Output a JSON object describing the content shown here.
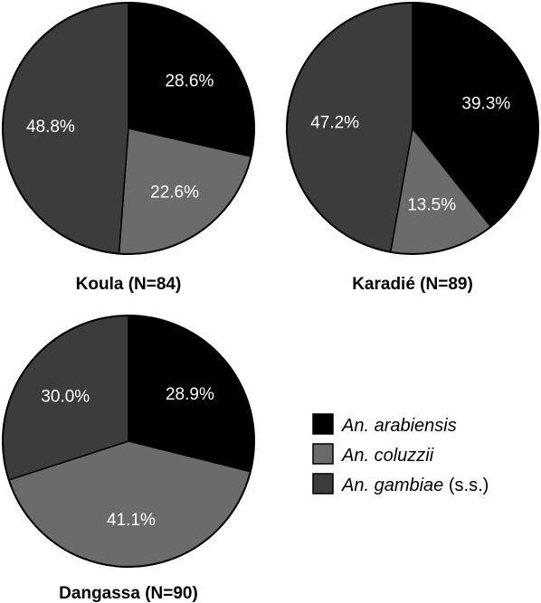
{
  "chart_data": [
    {
      "type": "pie",
      "title": "Koula (N=84)",
      "categories": [
        "An. arabiensis",
        "An. coluzzii",
        "An. gambiae (s.s.)"
      ],
      "values": [
        28.6,
        22.6,
        48.8
      ],
      "labels": [
        "28.6%",
        "22.6%",
        "48.8%"
      ]
    },
    {
      "type": "pie",
      "title": "Karadié (N=89)",
      "categories": [
        "An. arabiensis",
        "An. coluzzii",
        "An. gambiae (s.s.)"
      ],
      "values": [
        39.3,
        13.5,
        47.2
      ],
      "labels": [
        "39.3%",
        "13.5%",
        "47.2%"
      ]
    },
    {
      "type": "pie",
      "title": "Dangassa (N=90)",
      "categories": [
        "An. arabiensis",
        "An. coluzzii",
        "An. gambiae (s.s.)"
      ],
      "values": [
        28.9,
        41.1,
        30.0
      ],
      "labels": [
        "28.9%",
        "41.1%",
        "30.0%"
      ]
    }
  ],
  "legend": [
    {
      "name": "An. arabiensis",
      "main": "An. arabiensis",
      "suffix": "",
      "color": "#000000"
    },
    {
      "name": "An. coluzzii",
      "main": "An. coluzzii",
      "suffix": "",
      "color": "#6b6b6b"
    },
    {
      "name": "An. gambiae (s.s.)",
      "main": "An. gambiae",
      "suffix": " (s.s.)",
      "color": "#3c3c3c"
    }
  ],
  "colors": {
    "arabiensis": "#000000",
    "coluzzii": "#6b6b6b",
    "gambiae": "#3c3c3c",
    "outline": "#000000"
  }
}
